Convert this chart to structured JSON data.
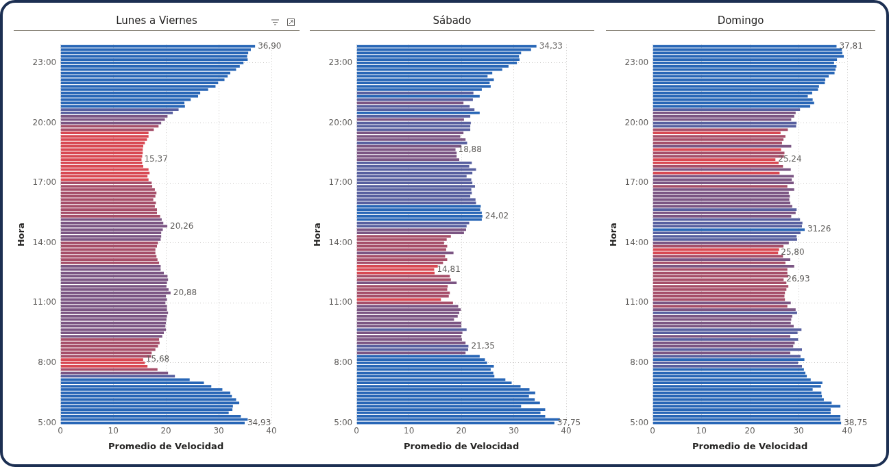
{
  "chart_data": [
    {
      "type": "bar",
      "orientation": "horizontal",
      "title": "Lunes a Viernes",
      "xlabel": "Promedio de Velocidad",
      "ylabel": "Hora",
      "xlim": [
        0,
        40
      ],
      "xticks": [
        0,
        10,
        20,
        30,
        40
      ],
      "grid": true,
      "categories": [
        null,
        null,
        null,
        null,
        null,
        "23:00",
        null,
        null,
        null,
        null,
        null,
        null,
        null,
        null,
        null,
        null,
        null,
        null,
        null,
        null,
        null,
        null,
        null,
        "20:00",
        null,
        null,
        null,
        null,
        null,
        null,
        null,
        null,
        null,
        null,
        null,
        null,
        null,
        null,
        null,
        null,
        null,
        "17:00",
        null,
        null,
        null,
        null,
        null,
        null,
        null,
        null,
        null,
        null,
        null,
        null,
        null,
        null,
        null,
        null,
        null,
        "14:00",
        null,
        null,
        null,
        null,
        null,
        null,
        null,
        null,
        null,
        null,
        null,
        null,
        null,
        null,
        null,
        null,
        null,
        "11:00",
        null,
        null,
        null,
        null,
        null,
        null,
        null,
        null,
        null,
        null,
        null,
        null,
        null,
        null,
        null,
        null,
        null,
        "8:00",
        null,
        null,
        null,
        null,
        null,
        null,
        null,
        null,
        null,
        null,
        null,
        null,
        null,
        null,
        null,
        null,
        null,
        "5:00"
      ],
      "values": [
        36.9,
        36.1,
        35.6,
        35.4,
        35.5,
        34.7,
        34.0,
        33.3,
        32.2,
        31.7,
        31.1,
        29.9,
        29.4,
        28.0,
        26.5,
        26.1,
        24.7,
        23.5,
        23.6,
        22.4,
        21.3,
        20.3,
        19.8,
        19.1,
        18.6,
        17.7,
        16.7,
        16.7,
        16.4,
        16.0,
        15.7,
        15.6,
        15.6,
        15.5,
        15.37,
        15.5,
        15.7,
        16.7,
        16.9,
        16.5,
        16.7,
        17.3,
        17.4,
        17.9,
        18.2,
        18.0,
        17.6,
        18.1,
        17.9,
        18.3,
        18.3,
        18.9,
        19.2,
        19.5,
        20.26,
        19.4,
        19.1,
        19.1,
        19.0,
        18.5,
        18.3,
        18.0,
        18.0,
        18.2,
        18.4,
        18.7,
        19.0,
        19.0,
        19.6,
        20.3,
        20.4,
        20.2,
        20.1,
        20.5,
        20.88,
        20.0,
        20.2,
        19.9,
        20.2,
        20.2,
        20.4,
        20.2,
        20.1,
        20.0,
        19.9,
        20.0,
        19.6,
        19.3,
        18.7,
        18.8,
        18.5,
        18.0,
        17.3,
        17.2,
        15.68,
        16.0,
        16.5,
        18.4,
        20.4,
        21.7,
        24.5,
        27.2,
        28.6,
        30.7,
        32.2,
        32.5,
        33.3,
        33.9,
        32.7,
        32.6,
        31.9,
        34.2,
        35.5,
        34.93
      ],
      "colors": [
        "#2866b6",
        "#2866b6",
        "#2866b6",
        "#2866b6",
        "#2866b6",
        "#2866b6",
        "#2866b6",
        "#2866b6",
        "#2866b6",
        "#2866b6",
        "#2866b6",
        "#2866b6",
        "#2866b6",
        "#2866b6",
        "#2866b6",
        "#2866b6",
        "#2866b6",
        "#2866b6",
        "#2866b6",
        "#575f9f",
        "#575f9f",
        "#7b5583",
        "#7b5583",
        "#7b5583",
        "#a64e69",
        "#a64e69",
        "#d84852",
        "#d84852",
        "#d84852",
        "#d84852",
        "#d84852",
        "#d84852",
        "#d84852",
        "#d84852",
        "#d84852",
        "#d84852",
        "#d84852",
        "#d84852",
        "#d84852",
        "#d84852",
        "#d84852",
        "#a64e69",
        "#a64e69",
        "#a64e69",
        "#a64e69",
        "#a64e69",
        "#a64e69",
        "#a64e69",
        "#a64e69",
        "#a64e69",
        "#a64e69",
        "#a64e69",
        "#7b5583",
        "#7b5583",
        "#7b5583",
        "#7b5583",
        "#7b5583",
        "#7b5583",
        "#7b5583",
        "#a64e69",
        "#a64e69",
        "#a64e69",
        "#a64e69",
        "#a64e69",
        "#a64e69",
        "#a64e69",
        "#7b5583",
        "#7b5583",
        "#7b5583",
        "#7b5583",
        "#7b5583",
        "#7b5583",
        "#7b5583",
        "#7b5583",
        "#7b5583",
        "#7b5583",
        "#7b5583",
        "#7b5583",
        "#7b5583",
        "#7b5583",
        "#7b5583",
        "#7b5583",
        "#7b5583",
        "#7b5583",
        "#7b5583",
        "#7b5583",
        "#7b5583",
        "#7b5583",
        "#a64e69",
        "#a64e69",
        "#a64e69",
        "#a64e69",
        "#a64e69",
        "#a64e69",
        "#d84852",
        "#d84852",
        "#d84852",
        "#a64e69",
        "#7b5583",
        "#575f9f",
        "#2866b6",
        "#2866b6",
        "#2866b6",
        "#2866b6",
        "#2866b6",
        "#2866b6",
        "#2866b6",
        "#2866b6",
        "#2866b6",
        "#2866b6",
        "#2866b6",
        "#2866b6",
        "#2866b6",
        "#2866b6"
      ],
      "value_labels": [
        "36,90",
        null,
        null,
        null,
        null,
        null,
        null,
        null,
        null,
        null,
        null,
        null,
        null,
        null,
        null,
        null,
        null,
        null,
        null,
        null,
        null,
        null,
        null,
        null,
        null,
        null,
        null,
        null,
        null,
        null,
        null,
        null,
        null,
        null,
        "15,37",
        null,
        null,
        null,
        null,
        null,
        null,
        null,
        null,
        null,
        null,
        null,
        null,
        null,
        null,
        null,
        null,
        null,
        null,
        null,
        "20,26",
        null,
        null,
        null,
        null,
        null,
        null,
        null,
        null,
        null,
        null,
        null,
        null,
        null,
        null,
        null,
        null,
        null,
        null,
        null,
        "20,88",
        null,
        null,
        null,
        null,
        null,
        null,
        null,
        null,
        null,
        null,
        null,
        null,
        null,
        null,
        null,
        null,
        null,
        null,
        null,
        "15,68",
        null,
        null,
        null,
        null,
        null,
        null,
        null,
        null,
        null,
        null,
        null,
        null,
        null,
        null,
        null,
        null,
        null,
        null,
        "34,93"
      ]
    },
    {
      "type": "bar",
      "orientation": "horizontal",
      "title": "Sábado",
      "xlabel": "Promedio de Velocidad",
      "ylabel": "Hora",
      "xlim": [
        0,
        40
      ],
      "xticks": [
        0,
        10,
        20,
        30,
        40
      ],
      "grid": true,
      "categories": [
        null,
        null,
        null,
        null,
        null,
        "23:00",
        null,
        null,
        null,
        null,
        null,
        null,
        null,
        null,
        null,
        null,
        null,
        null,
        null,
        null,
        null,
        null,
        null,
        "20:00",
        null,
        null,
        null,
        null,
        null,
        null,
        null,
        null,
        null,
        null,
        null,
        null,
        null,
        null,
        null,
        null,
        null,
        "17:00",
        null,
        null,
        null,
        null,
        null,
        null,
        null,
        null,
        null,
        null,
        null,
        null,
        null,
        null,
        null,
        null,
        null,
        "14:00",
        null,
        null,
        null,
        null,
        null,
        null,
        null,
        null,
        null,
        null,
        null,
        null,
        null,
        null,
        null,
        null,
        null,
        "11:00",
        null,
        null,
        null,
        null,
        null,
        null,
        null,
        null,
        null,
        null,
        null,
        null,
        null,
        null,
        null,
        null,
        null,
        "8:00",
        null,
        null,
        null,
        null,
        null,
        null,
        null,
        null,
        null,
        null,
        null,
        null,
        null,
        null,
        null,
        null,
        null,
        "5:00"
      ],
      "values": [
        34.33,
        33.3,
        31.4,
        31.0,
        31.1,
        30.6,
        29.0,
        27.8,
        25.9,
        25.0,
        26.2,
        25.4,
        25.6,
        23.9,
        22.3,
        23.5,
        22.2,
        20.4,
        21.6,
        22.5,
        23.5,
        21.7,
        20.5,
        21.8,
        21.7,
        21.7,
        20.4,
        19.8,
        20.8,
        21.1,
        20.0,
        18.88,
        19.1,
        19.1,
        19.6,
        22.0,
        21.5,
        22.8,
        22.1,
        21.0,
        21.9,
        22.1,
        22.6,
        21.9,
        22.0,
        21.7,
        22.7,
        22.8,
        23.7,
        23.6,
        23.9,
        24.02,
        23.9,
        21.5,
        21.0,
        20.9,
        20.5,
        18.0,
        17.2,
        16.7,
        17.3,
        17.1,
        18.5,
        16.9,
        17.3,
        16.5,
        15.5,
        14.81,
        14.9,
        17.8,
        18.0,
        19.1,
        17.4,
        17.3,
        17.8,
        17.6,
        16.1,
        18.4,
        19.4,
        19.9,
        19.6,
        19.3,
        18.6,
        20.0,
        20.0,
        21.0,
        20.2,
        20.0,
        20.1,
        20.8,
        21.35,
        21.3,
        20.8,
        23.5,
        24.5,
        24.9,
        26.2,
        25.6,
        26.1,
        26.3,
        28.4,
        29.6,
        31.3,
        33.0,
        34.1,
        32.9,
        34.0,
        35.0,
        31.4,
        36.0,
        35.1,
        36.0,
        38.8,
        37.75
      ],
      "colors": [
        "#2866b6",
        "#2866b6",
        "#2866b6",
        "#2866b6",
        "#2866b6",
        "#2866b6",
        "#2866b6",
        "#2866b6",
        "#2866b6",
        "#2866b6",
        "#2866b6",
        "#2866b6",
        "#2866b6",
        "#2866b6",
        "#575f9f",
        "#2866b6",
        "#575f9f",
        "#7b5583",
        "#575f9f",
        "#575f9f",
        "#2866b6",
        "#575f9f",
        "#7b5583",
        "#575f9f",
        "#575f9f",
        "#575f9f",
        "#7b5583",
        "#7b5583",
        "#7b5583",
        "#575f9f",
        "#7b5583",
        "#7b5583",
        "#7b5583",
        "#7b5583",
        "#7b5583",
        "#575f9f",
        "#575f9f",
        "#575f9f",
        "#575f9f",
        "#575f9f",
        "#575f9f",
        "#575f9f",
        "#575f9f",
        "#575f9f",
        "#575f9f",
        "#575f9f",
        "#575f9f",
        "#575f9f",
        "#2866b6",
        "#2866b6",
        "#2866b6",
        "#2866b6",
        "#2866b6",
        "#575f9f",
        "#575f9f",
        "#7b5583",
        "#7b5583",
        "#a64e69",
        "#a64e69",
        "#a64e69",
        "#a64e69",
        "#a64e69",
        "#7b5583",
        "#a64e69",
        "#a64e69",
        "#a64e69",
        "#d84852",
        "#d84852",
        "#d84852",
        "#a64e69",
        "#a64e69",
        "#7b5583",
        "#a64e69",
        "#a64e69",
        "#a64e69",
        "#a64e69",
        "#d84852",
        "#a64e69",
        "#7b5583",
        "#7b5583",
        "#7b5583",
        "#7b5583",
        "#7b5583",
        "#7b5583",
        "#7b5583",
        "#575f9f",
        "#7b5583",
        "#7b5583",
        "#7b5583",
        "#7b5583",
        "#575f9f",
        "#575f9f",
        "#7b5583",
        "#2866b6",
        "#2866b6",
        "#2866b6",
        "#2866b6",
        "#2866b6",
        "#2866b6",
        "#2866b6",
        "#2866b6",
        "#2866b6",
        "#2866b6",
        "#2866b6",
        "#2866b6",
        "#2866b6",
        "#2866b6",
        "#2866b6",
        "#2866b6",
        "#2866b6",
        "#2866b6",
        "#2866b6",
        "#2866b6",
        "#2866b6"
      ],
      "value_labels": [
        "34,33",
        null,
        null,
        null,
        null,
        null,
        null,
        null,
        null,
        null,
        null,
        null,
        null,
        null,
        null,
        null,
        null,
        null,
        null,
        null,
        null,
        null,
        null,
        null,
        null,
        null,
        null,
        null,
        null,
        null,
        null,
        "18,88",
        null,
        null,
        null,
        null,
        null,
        null,
        null,
        null,
        null,
        null,
        null,
        null,
        null,
        null,
        null,
        null,
        null,
        null,
        null,
        "24,02",
        null,
        null,
        null,
        null,
        null,
        null,
        null,
        null,
        null,
        null,
        null,
        null,
        null,
        null,
        null,
        "14,81",
        null,
        null,
        null,
        null,
        null,
        null,
        null,
        null,
        null,
        null,
        null,
        null,
        null,
        null,
        null,
        null,
        null,
        null,
        null,
        null,
        null,
        null,
        "21,35",
        null,
        null,
        null,
        null,
        null,
        null,
        null,
        null,
        null,
        null,
        null,
        null,
        null,
        null,
        null,
        null,
        null,
        null,
        null,
        null,
        null,
        null,
        "37,75"
      ]
    },
    {
      "type": "bar",
      "orientation": "horizontal",
      "title": "Domingo",
      "xlabel": "Promedio de Velocidad",
      "ylabel": "Hora",
      "xlim": [
        0,
        40
      ],
      "xticks": [
        0,
        10,
        20,
        30,
        40
      ],
      "grid": true,
      "categories": [
        null,
        null,
        null,
        null,
        null,
        "23:00",
        null,
        null,
        null,
        null,
        null,
        null,
        null,
        null,
        null,
        null,
        null,
        null,
        null,
        null,
        null,
        null,
        null,
        "20:00",
        null,
        null,
        null,
        null,
        null,
        null,
        null,
        null,
        null,
        null,
        null,
        null,
        null,
        null,
        null,
        null,
        null,
        "17:00",
        null,
        null,
        null,
        null,
        null,
        null,
        null,
        null,
        null,
        null,
        null,
        null,
        null,
        null,
        null,
        null,
        null,
        "14:00",
        null,
        null,
        null,
        null,
        null,
        null,
        null,
        null,
        null,
        null,
        null,
        null,
        null,
        null,
        null,
        null,
        null,
        "11:00",
        null,
        null,
        null,
        null,
        null,
        null,
        null,
        null,
        null,
        null,
        null,
        null,
        null,
        null,
        null,
        null,
        null,
        "8:00",
        null,
        null,
        null,
        null,
        null,
        null,
        null,
        null,
        null,
        null,
        null,
        null,
        null,
        null,
        null,
        null,
        null,
        "5:00"
      ],
      "values": [
        37.81,
        38.9,
        39.0,
        39.3,
        37.9,
        37.3,
        37.8,
        37.6,
        37.4,
        36.2,
        35.5,
        35.4,
        34.2,
        34.0,
        32.8,
        31.9,
        32.9,
        33.2,
        32.4,
        30.3,
        29.4,
        29.1,
        28.5,
        29.6,
        29.5,
        27.8,
        26.3,
        27.3,
        26.9,
        26.6,
        28.5,
        26.4,
        27.1,
        27.0,
        25.24,
        25.9,
        26.8,
        28.4,
        26.1,
        29.0,
        28.6,
        29.0,
        27.7,
        29.1,
        28.0,
        28.2,
        28.1,
        28.3,
        28.7,
        29.6,
        29.4,
        28.5,
        30.3,
        30.8,
        30.7,
        31.26,
        30.4,
        29.6,
        29.7,
        28.0,
        26.9,
        26.0,
        25.8,
        26.8,
        28.3,
        27.3,
        29.1,
        27.7,
        27.7,
        27.9,
        26.93,
        27.5,
        27.9,
        27.5,
        27.2,
        27.1,
        27.2,
        28.4,
        27.7,
        29.4,
        29.7,
        28.7,
        28.5,
        28.4,
        29.0,
        30.6,
        29.8,
        28.3,
        29.9,
        29.2,
        28.9,
        30.7,
        28.3,
        30.4,
        31.2,
        29.9,
        30.7,
        31.1,
        31.4,
        31.7,
        32.5,
        34.9,
        34.6,
        32.9,
        34.7,
        34.8,
        35.2,
        36.8,
        38.6,
        36.6,
        36.6,
        38.6,
        38.6,
        38.75
      ],
      "colors": [
        "#2866b6",
        "#2866b6",
        "#2866b6",
        "#2866b6",
        "#2866b6",
        "#2866b6",
        "#2866b6",
        "#2866b6",
        "#2866b6",
        "#2866b6",
        "#2866b6",
        "#2866b6",
        "#2866b6",
        "#2866b6",
        "#2866b6",
        "#2866b6",
        "#2866b6",
        "#2866b6",
        "#2866b6",
        "#575f9f",
        "#7b5583",
        "#7b5583",
        "#7b5583",
        "#575f9f",
        "#575f9f",
        "#a64e69",
        "#d84852",
        "#a64e69",
        "#a64e69",
        "#a64e69",
        "#7b5583",
        "#d84852",
        "#a64e69",
        "#a64e69",
        "#d84852",
        "#d84852",
        "#a64e69",
        "#7b5583",
        "#d84852",
        "#7b5583",
        "#7b5583",
        "#7b5583",
        "#a64e69",
        "#7b5583",
        "#7b5583",
        "#7b5583",
        "#7b5583",
        "#7b5583",
        "#7b5583",
        "#575f9f",
        "#7b5583",
        "#7b5583",
        "#575f9f",
        "#575f9f",
        "#575f9f",
        "#2866b6",
        "#575f9f",
        "#575f9f",
        "#575f9f",
        "#7b5583",
        "#a64e69",
        "#d84852",
        "#d84852",
        "#a64e69",
        "#7b5583",
        "#a64e69",
        "#7b5583",
        "#a64e69",
        "#a64e69",
        "#a64e69",
        "#a64e69",
        "#a64e69",
        "#a64e69",
        "#a64e69",
        "#a64e69",
        "#a64e69",
        "#a64e69",
        "#7b5583",
        "#a64e69",
        "#7b5583",
        "#575f9f",
        "#7b5583",
        "#7b5583",
        "#7b5583",
        "#7b5583",
        "#575f9f",
        "#575f9f",
        "#7b5583",
        "#575f9f",
        "#7b5583",
        "#7b5583",
        "#575f9f",
        "#7b5583",
        "#575f9f",
        "#2866b6",
        "#575f9f",
        "#575f9f",
        "#2866b6",
        "#2866b6",
        "#2866b6",
        "#2866b6",
        "#2866b6",
        "#2866b6",
        "#2866b6",
        "#2866b6",
        "#2866b6",
        "#2866b6",
        "#2866b6",
        "#2866b6",
        "#2866b6",
        "#2866b6",
        "#2866b6",
        "#2866b6",
        "#2866b6"
      ],
      "value_labels": [
        "37,81",
        null,
        null,
        null,
        null,
        null,
        null,
        null,
        null,
        null,
        null,
        null,
        null,
        null,
        null,
        null,
        null,
        null,
        null,
        null,
        null,
        null,
        null,
        null,
        null,
        null,
        null,
        null,
        null,
        null,
        null,
        null,
        null,
        null,
        "25,24",
        null,
        null,
        null,
        null,
        null,
        null,
        null,
        null,
        null,
        null,
        null,
        null,
        null,
        null,
        null,
        null,
        null,
        null,
        null,
        null,
        "31,26",
        null,
        null,
        null,
        null,
        null,
        null,
        "25,80",
        null,
        null,
        null,
        null,
        null,
        null,
        null,
        "26,93",
        null,
        null,
        null,
        null,
        null,
        null,
        null,
        null,
        null,
        null,
        null,
        null,
        null,
        null,
        null,
        null,
        null,
        null,
        null,
        null,
        null,
        null,
        null,
        null,
        null,
        null,
        null,
        null,
        null,
        null,
        null,
        null,
        null,
        null,
        null,
        null,
        null,
        null,
        null,
        null,
        null,
        null,
        "38,75"
      ]
    }
  ]
}
